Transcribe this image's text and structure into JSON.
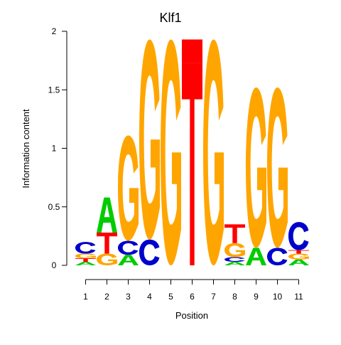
{
  "chart_data": {
    "type": "sequence-logo",
    "title": "Klf1",
    "xlabel": "Position",
    "ylabel": "Information content",
    "ylim": [
      0,
      2
    ],
    "yticks": [
      0,
      0.5,
      1,
      1.5,
      2
    ],
    "ytick_labels": [
      "0",
      "0.5",
      "1",
      "1.5",
      "2"
    ],
    "positions": [
      1,
      2,
      3,
      4,
      5,
      6,
      7,
      8,
      9,
      10,
      11
    ],
    "position_labels": [
      "1",
      "2",
      "3",
      "4",
      "5",
      "6",
      "7",
      "8",
      "9",
      "10",
      "11"
    ],
    "colors": {
      "A": "#00cc00",
      "C": "#0000cc",
      "G": "#ffa500",
      "T": "#ff0000"
    },
    "columns": [
      {
        "position": 1,
        "letters": [
          {
            "base": "A",
            "height": 0.03
          },
          {
            "base": "T",
            "height": 0.03
          },
          {
            "base": "G",
            "height": 0.04
          },
          {
            "base": "C",
            "height": 0.1
          }
        ]
      },
      {
        "position": 2,
        "letters": [
          {
            "base": "G",
            "height": 0.1
          },
          {
            "base": "T",
            "height": 0.18
          },
          {
            "base": "A",
            "height": 0.3
          }
        ]
      },
      {
        "position": 3,
        "letters": [
          {
            "base": "A",
            "height": 0.09
          },
          {
            "base": "C",
            "height": 0.12
          },
          {
            "base": "G",
            "height": 0.9
          }
        ]
      },
      {
        "position": 4,
        "letters": [
          {
            "base": "C",
            "height": 0.22
          },
          {
            "base": "G",
            "height": 1.71
          }
        ]
      },
      {
        "position": 5,
        "letters": [
          {
            "base": "G",
            "height": 1.93
          }
        ]
      },
      {
        "position": 6,
        "letters": [
          {
            "base": "T",
            "height": 1.73
          },
          {
            "base": "T",
            "height": 0.2,
            "filled": true
          }
        ]
      },
      {
        "position": 7,
        "letters": [
          {
            "base": "G",
            "height": 1.93
          }
        ]
      },
      {
        "position": 8,
        "letters": [
          {
            "base": "A",
            "height": 0.03
          },
          {
            "base": "C",
            "height": 0.04
          },
          {
            "base": "G",
            "height": 0.12
          },
          {
            "base": "T",
            "height": 0.16
          }
        ]
      },
      {
        "position": 9,
        "letters": [
          {
            "base": "A",
            "height": 0.15
          },
          {
            "base": "G",
            "height": 1.37
          }
        ]
      },
      {
        "position": 10,
        "letters": [
          {
            "base": "C",
            "height": 0.15
          },
          {
            "base": "G",
            "height": 1.37
          }
        ]
      },
      {
        "position": 11,
        "letters": [
          {
            "base": "A",
            "height": 0.05
          },
          {
            "base": "G",
            "height": 0.05
          },
          {
            "base": "T",
            "height": 0.03
          },
          {
            "base": "C",
            "height": 0.24
          }
        ]
      }
    ]
  }
}
